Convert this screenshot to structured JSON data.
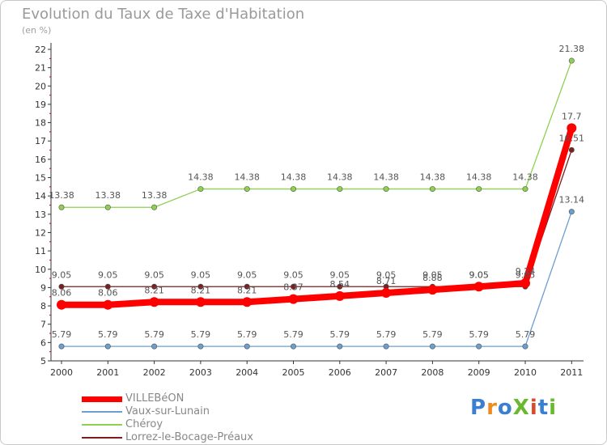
{
  "title": "Evolution du Taux de Taxe d'Habitation",
  "subtitle": "(en %)",
  "logo": "ProXiti",
  "chart_data": {
    "type": "line",
    "title": "Evolution du Taux de Taxe d'Habitation",
    "ylabel": "(en %)",
    "xlabel": "",
    "ylim": [
      5,
      22
    ],
    "grid": false,
    "x": [
      "2000",
      "2001",
      "2002",
      "2003",
      "2004",
      "2005",
      "2006",
      "2007",
      "2008",
      "2009",
      "2010",
      "2011"
    ],
    "y_ticks": [
      "5",
      "6",
      "7",
      "8",
      "9",
      "10",
      "11",
      "12",
      "13",
      "14",
      "15",
      "16",
      "17",
      "18",
      "19",
      "20",
      "21",
      "22"
    ],
    "series": [
      {
        "name": "VILLEBéON",
        "color": "#ff0000",
        "values": [
          8.06,
          8.06,
          8.21,
          8.21,
          8.21,
          8.37,
          8.54,
          8.71,
          8.88,
          9.05,
          9.24,
          17.7
        ],
        "labels": [
          "8.06",
          "8.06",
          "8.21",
          "8.21",
          "8.21",
          "8.37",
          "8.54",
          "8.71",
          "8.88",
          "9.05",
          "9.24",
          "17.7"
        ]
      },
      {
        "name": "Vaux-sur-Lunain",
        "color": "#6a9fd0",
        "values": [
          5.79,
          5.79,
          5.79,
          5.79,
          5.79,
          5.79,
          5.79,
          5.79,
          5.79,
          5.79,
          5.79,
          13.14
        ],
        "labels": [
          "5.79",
          "5.79",
          "5.79",
          "5.79",
          "5.79",
          "5.79",
          "5.79",
          "5.79",
          "5.79",
          "5.79",
          "5.79",
          "13.14"
        ]
      },
      {
        "name": "Chéroy",
        "color": "#8ed050",
        "values": [
          13.38,
          13.38,
          13.38,
          14.38,
          14.38,
          14.38,
          14.38,
          14.38,
          14.38,
          14.38,
          14.38,
          21.38
        ],
        "labels": [
          "13.38",
          "13.38",
          "13.38",
          "14.38",
          "14.38",
          "14.38",
          "14.38",
          "14.38",
          "14.38",
          "14.38",
          "14.38",
          "21.38"
        ]
      },
      {
        "name": "Lorrez-le-Bocage-Préaux",
        "color": "#7a1f1f",
        "values": [
          9.05,
          9.05,
          9.05,
          9.05,
          9.05,
          9.05,
          9.05,
          9.05,
          9.05,
          9.05,
          9.05,
          16.51
        ],
        "labels": [
          "9.05",
          "9.05",
          "9.05",
          "9.05",
          "9.05",
          "9.05",
          "9.05",
          "9.05",
          "9.05",
          "9.05",
          "9.05",
          "16.51"
        ]
      }
    ]
  }
}
